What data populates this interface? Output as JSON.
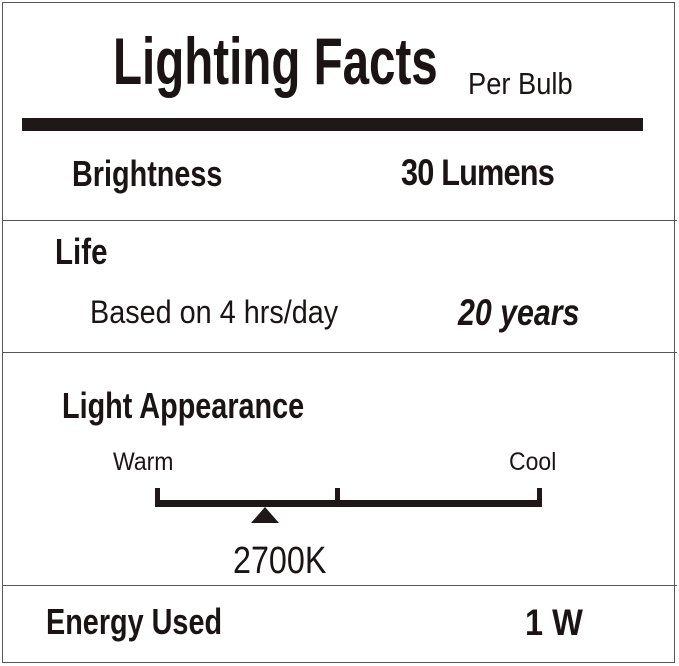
{
  "header": {
    "title": "Lighting Facts",
    "subtitle": "Per Bulb"
  },
  "brightness": {
    "label": "Brightness",
    "value": "30 Lumens"
  },
  "life": {
    "label": "Life",
    "note": "Based on 4 hrs/day",
    "value": "20 years"
  },
  "light_appearance": {
    "label": "Light Appearance",
    "scale_left": "Warm",
    "scale_right": "Cool",
    "value": "2700K",
    "marker_position_fraction": 0.28
  },
  "energy": {
    "label": "Energy Used",
    "value": "1 W"
  },
  "colors": {
    "ink": "#1e1818",
    "background": "#ffffff"
  }
}
